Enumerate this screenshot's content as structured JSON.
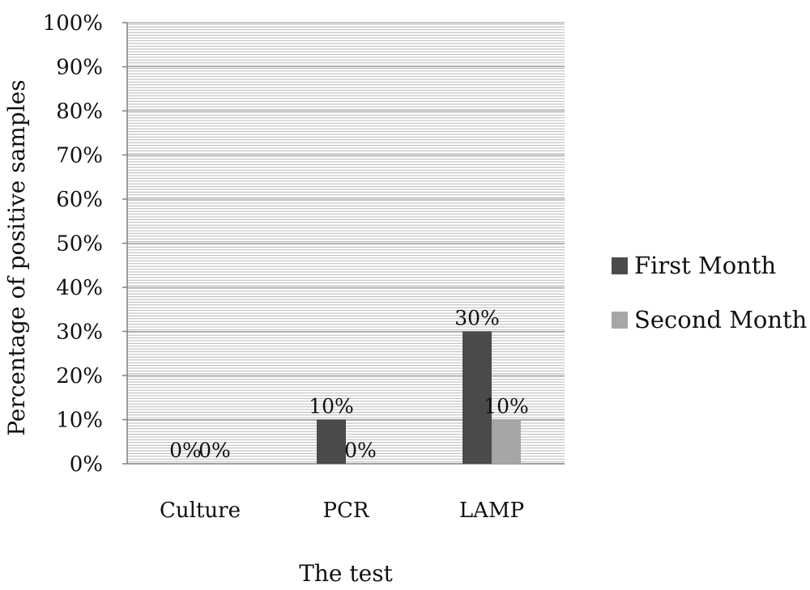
{
  "chart_data": {
    "type": "bar",
    "categories": [
      "Culture",
      "PCR",
      "LAMP"
    ],
    "series": [
      {
        "name": "First Month",
        "values": [
          0,
          10,
          30
        ],
        "labels": [
          "0%",
          "10%",
          "30%"
        ]
      },
      {
        "name": "Second Month",
        "values": [
          0,
          0,
          10
        ],
        "labels": [
          "0%",
          "0%",
          "10%"
        ]
      }
    ],
    "xlabel": "The test",
    "ylabel": "Percentage of positive samples",
    "ylim": [
      0,
      100
    ],
    "yticks": [
      0,
      10,
      20,
      30,
      40,
      50,
      60,
      70,
      80,
      90,
      100
    ],
    "ytick_labels": [
      "0%",
      "10%",
      "20%",
      "30%",
      "40%",
      "50%",
      "60%",
      "70%",
      "80%",
      "90%",
      "100%"
    ],
    "grid": true,
    "legend_position": "right"
  },
  "colors": {
    "series": [
      "#4a4a4a",
      "#a6a6a6"
    ],
    "grid": "#b8b8b8",
    "axis": "#808080"
  }
}
